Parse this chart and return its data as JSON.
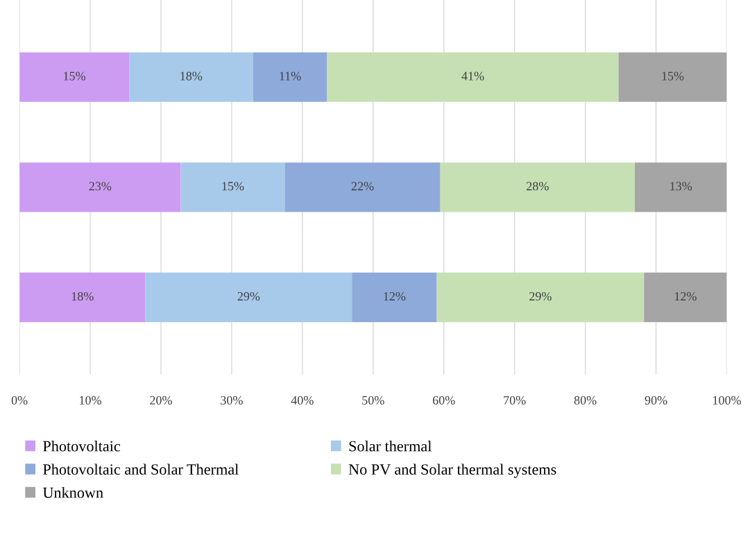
{
  "chart_data": {
    "type": "bar",
    "orientation": "horizontal",
    "stacked": true,
    "categories": [
      null,
      null,
      null
    ],
    "series": [
      {
        "name": "Photovoltaic",
        "color": "#cc9cf2",
        "values": [
          15.5,
          22.8,
          17.8
        ],
        "value_labels": [
          "15%",
          "23%",
          "18%"
        ]
      },
      {
        "name": "Solar thermal",
        "color": "#a7c9ea",
        "values": [
          17.5,
          14.7,
          29.2
        ],
        "value_labels": [
          "18%",
          "15%",
          "29%"
        ]
      },
      {
        "name": "Photovoltaic and Solar Thermal",
        "color": "#8eaadb",
        "values": [
          10.5,
          22,
          12
        ],
        "value_labels": [
          "11%",
          "22%",
          "12%"
        ]
      },
      {
        "name": "No PV and Solar thermal systems",
        "color": "#c6e0b4",
        "values": [
          41.2,
          27.5,
          29.3
        ],
        "value_labels": [
          "41%",
          "28%",
          "29%"
        ]
      },
      {
        "name": "Unknown",
        "color": "#a6a5a5",
        "values": [
          15.3,
          13,
          11.7
        ],
        "value_labels": [
          "15%",
          "13%",
          "12%"
        ]
      }
    ],
    "xlim": [
      0,
      100
    ],
    "xticks": [
      {
        "value": 0,
        "label": "0%"
      },
      {
        "value": 10,
        "label": "10%"
      },
      {
        "value": 20,
        "label": "20%"
      },
      {
        "value": 30,
        "label": "30%"
      },
      {
        "value": 40,
        "label": "40%"
      },
      {
        "value": 50,
        "label": "50%"
      },
      {
        "value": 60,
        "label": "60%"
      },
      {
        "value": 70,
        "label": "70%"
      },
      {
        "value": 80,
        "label": "80%"
      },
      {
        "value": 90,
        "label": "90%"
      },
      {
        "value": 100,
        "label": "100%"
      }
    ],
    "grid": "x",
    "legend": "bottom"
  }
}
